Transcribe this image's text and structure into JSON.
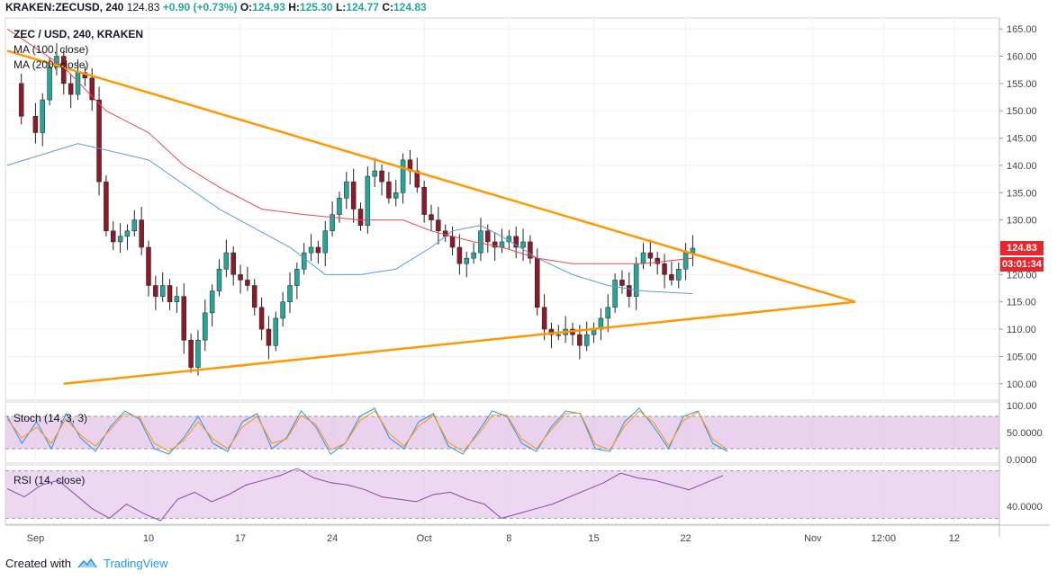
{
  "header": {
    "symbol": "KRAKEN:ZECUSD, 240",
    "last": "124.83",
    "change": "+0.90 (+0.73%)",
    "o_label": "O:",
    "o": "124.93",
    "h_label": "H:",
    "h": "125.30",
    "l_label": "L:",
    "l": "124.77",
    "c_label": "C:",
    "c": "124.83"
  },
  "legend": {
    "title": "ZEC / USD, 240, KRAKEN",
    "ma100": "MA (100, close)",
    "ma200": "MA (200, close)",
    "stoch": "Stoch (14, 3, 3)",
    "rsi": "RSI (14, close)"
  },
  "badges": {
    "price": "124.83",
    "countdown": "03:01:34"
  },
  "footer": {
    "created_with": "Created with",
    "brand": "TradingView"
  },
  "colors": {
    "up": "#26a69a",
    "down": "#8b1a2b",
    "ma100": "#5b9bd5",
    "ma200": "#e84a4a",
    "trendline": "#ff9800",
    "stoch_k": "#2196f3",
    "stoch_d": "#ff9800",
    "rsi": "#8e44ad",
    "band": "#e1bee7"
  },
  "chart_data": [
    {
      "type": "candlestick",
      "title": "ZEC / USD, 240, KRAKEN",
      "ylim": [
        97,
        167
      ],
      "y_ticks": [
        "165.00",
        "160.00",
        "155.00",
        "150.00",
        "145.00",
        "140.00",
        "135.00",
        "130.00",
        "125.00",
        "120.00",
        "115.00",
        "110.00",
        "105.00",
        "100.00"
      ],
      "y_tick_values": [
        165,
        160,
        155,
        150,
        145,
        140,
        135,
        130,
        125,
        120,
        115,
        110,
        105,
        100
      ],
      "x_ticks": [
        "Sep",
        "10",
        "17",
        "24",
        "Oct",
        "8",
        "15",
        "22",
        "Nov",
        "12:00",
        "12"
      ],
      "close_path": [
        [
          0,
          155
        ],
        [
          2,
          149
        ],
        [
          4,
          146
        ],
        [
          5,
          152
        ],
        [
          6,
          158
        ],
        [
          7,
          160
        ],
        [
          8,
          155
        ],
        [
          9,
          153
        ],
        [
          10,
          157
        ],
        [
          11,
          156
        ],
        [
          12,
          152
        ],
        [
          13,
          137
        ],
        [
          14,
          128
        ],
        [
          15,
          126
        ],
        [
          16,
          127
        ],
        [
          17,
          128
        ],
        [
          18,
          130
        ],
        [
          19,
          125
        ],
        [
          20,
          118
        ],
        [
          21,
          116
        ],
        [
          22,
          118
        ],
        [
          23,
          115
        ],
        [
          24,
          116
        ],
        [
          25,
          108
        ],
        [
          26,
          103
        ],
        [
          27,
          108
        ],
        [
          28,
          113
        ],
        [
          29,
          117
        ],
        [
          30,
          121
        ],
        [
          31,
          124
        ],
        [
          32,
          120
        ],
        [
          33,
          119
        ],
        [
          34,
          118
        ],
        [
          35,
          114
        ],
        [
          36,
          110
        ],
        [
          37,
          107
        ],
        [
          38,
          112
        ],
        [
          39,
          115
        ],
        [
          40,
          118
        ],
        [
          41,
          121
        ],
        [
          42,
          124
        ],
        [
          43,
          125
        ],
        [
          44,
          124
        ],
        [
          45,
          128
        ],
        [
          46,
          131
        ],
        [
          47,
          134
        ],
        [
          48,
          137
        ],
        [
          49,
          132
        ],
        [
          50,
          129
        ],
        [
          51,
          138
        ],
        [
          52,
          139
        ],
        [
          53,
          137
        ],
        [
          54,
          134
        ],
        [
          55,
          135
        ],
        [
          56,
          141
        ],
        [
          57,
          139
        ],
        [
          58,
          136
        ],
        [
          59,
          131
        ],
        [
          60,
          130
        ],
        [
          61,
          128
        ],
        [
          62,
          127
        ],
        [
          63,
          125
        ],
        [
          64,
          122
        ],
        [
          65,
          123
        ],
        [
          66,
          124
        ],
        [
          67,
          128
        ],
        [
          68,
          126
        ],
        [
          69,
          125
        ],
        [
          70,
          126
        ],
        [
          71,
          127
        ],
        [
          72,
          125
        ],
        [
          73,
          126
        ],
        [
          74,
          123
        ],
        [
          75,
          114
        ],
        [
          76,
          110
        ],
        [
          77,
          109
        ],
        [
          78,
          109
        ],
        [
          79,
          110
        ],
        [
          80,
          109
        ],
        [
          81,
          107
        ],
        [
          82,
          109
        ],
        [
          83,
          110
        ],
        [
          84,
          112
        ],
        [
          85,
          114
        ],
        [
          86,
          119
        ],
        [
          87,
          118
        ],
        [
          88,
          116
        ],
        [
          89,
          122
        ],
        [
          90,
          124
        ],
        [
          91,
          123
        ],
        [
          92,
          122
        ],
        [
          93,
          120
        ],
        [
          94,
          119
        ],
        [
          95,
          121
        ],
        [
          96,
          124
        ],
        [
          97,
          124.83
        ]
      ],
      "ma100_path": [
        [
          0,
          140
        ],
        [
          10,
          144
        ],
        [
          20,
          141
        ],
        [
          30,
          132
        ],
        [
          40,
          125
        ],
        [
          45,
          120
        ],
        [
          50,
          120
        ],
        [
          55,
          121
        ],
        [
          60,
          125
        ],
        [
          63,
          128
        ],
        [
          67,
          129
        ],
        [
          70,
          127
        ],
        [
          75,
          123
        ],
        [
          80,
          120
        ],
        [
          85,
          118
        ],
        [
          90,
          117
        ],
        [
          97,
          116.5
        ]
      ],
      "ma200_path": [
        [
          0,
          165
        ],
        [
          8,
          158
        ],
        [
          14,
          150
        ],
        [
          20,
          146
        ],
        [
          25,
          140
        ],
        [
          30,
          136
        ],
        [
          36,
          132
        ],
        [
          42,
          131
        ],
        [
          50,
          130
        ],
        [
          56,
          130
        ],
        [
          60,
          128
        ],
        [
          66,
          126
        ],
        [
          70,
          125
        ],
        [
          75,
          123
        ],
        [
          80,
          122
        ],
        [
          85,
          122
        ],
        [
          90,
          122
        ],
        [
          97,
          123
        ]
      ],
      "trendlines": [
        {
          "name": "upper",
          "from": [
            0,
            161
          ],
          "to": [
            120,
            115
          ]
        },
        {
          "name": "lower",
          "from": [
            8,
            100
          ],
          "to": [
            120,
            115
          ]
        }
      ]
    },
    {
      "type": "line",
      "title": "Stoch (14, 3, 3)",
      "ylim": [
        0,
        100
      ],
      "y_ticks": [
        "100.00",
        "50.0000",
        "0.0000"
      ],
      "y_tick_values": [
        100,
        50,
        0
      ],
      "band": [
        20,
        80
      ],
      "series": [
        {
          "name": "%K",
          "values": [
            80,
            30,
            70,
            20,
            85,
            40,
            15,
            60,
            90,
            75,
            20,
            10,
            40,
            80,
            30,
            15,
            70,
            85,
            20,
            40,
            90,
            60,
            10,
            30,
            80,
            95,
            40,
            20,
            70,
            85,
            25,
            10,
            50,
            90,
            80,
            30,
            15,
            60,
            90,
            85,
            20,
            15,
            70,
            95,
            60,
            20,
            80,
            90,
            30,
            15
          ]
        },
        {
          "name": "%D",
          "values": [
            75,
            40,
            60,
            30,
            75,
            45,
            25,
            55,
            85,
            78,
            30,
            15,
            35,
            70,
            38,
            20,
            60,
            80,
            30,
            38,
            82,
            65,
            18,
            30,
            72,
            90,
            48,
            25,
            62,
            82,
            32,
            15,
            45,
            82,
            82,
            38,
            20,
            55,
            85,
            86,
            28,
            18,
            62,
            90,
            68,
            25,
            72,
            88,
            38,
            18
          ]
        }
      ]
    },
    {
      "type": "line",
      "title": "RSI (14, close)",
      "ylim": [
        25,
        75
      ],
      "y_ticks": [
        "40.0000"
      ],
      "y_tick_values": [
        40
      ],
      "band": [
        30,
        70
      ],
      "series": [
        {
          "name": "RSI",
          "values": [
            55,
            48,
            58,
            62,
            50,
            38,
            30,
            42,
            34,
            28,
            46,
            52,
            44,
            50,
            58,
            62,
            66,
            72,
            64,
            60,
            58,
            54,
            48,
            46,
            44,
            50,
            52,
            46,
            42,
            30,
            34,
            38,
            42,
            48,
            54,
            60,
            68,
            64,
            62,
            58,
            54,
            60,
            66
          ]
        }
      ]
    }
  ]
}
